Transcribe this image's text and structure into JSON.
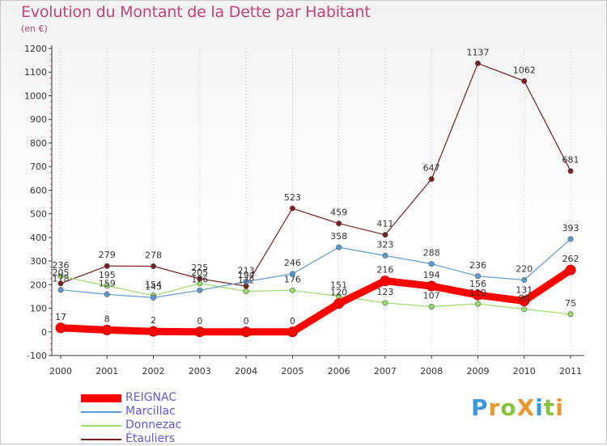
{
  "title": "Evolution du Montant de la Dette par Habitant",
  "subtitle": "(en €)",
  "brand": "ProXiti",
  "chart_data": {
    "type": "line",
    "title": "Evolution du Montant de la Dette par Habitant",
    "subtitle": "(en €)",
    "xlabel": "",
    "ylabel": "",
    "x": [
      "2000",
      "2001",
      "2002",
      "2003",
      "2004",
      "2005",
      "2006",
      "2007",
      "2008",
      "2009",
      "2010",
      "2011"
    ],
    "ylim": [
      -100,
      1200
    ],
    "yticks": [
      -100,
      0,
      100,
      200,
      300,
      400,
      500,
      600,
      700,
      800,
      900,
      1000,
      1100,
      1200
    ],
    "grid": "vertical dotted",
    "legend": "bottom-left",
    "series": [
      {
        "name": "REIGNAC",
        "color": "#ff0000",
        "values": [
          17,
          8,
          2,
          0,
          0,
          0,
          120,
          216,
          194,
          156,
          131,
          262
        ]
      },
      {
        "name": "Marcillac",
        "color": "#5b9bd5",
        "values": [
          178,
          159,
          145,
          176,
          213,
          246,
          358,
          323,
          288,
          236,
          220,
          393
        ]
      },
      {
        "name": "Donnezac",
        "color": "#99dd66",
        "values": [
          236,
          195,
          154,
          205,
          172,
          176,
          151,
          123,
          107,
          119,
          96,
          75
        ]
      },
      {
        "name": "Étauliers",
        "color": "#7a2020",
        "values": [
          205,
          279,
          278,
          225,
          194,
          523,
          459,
          411,
          647,
          1137,
          1062,
          681
        ]
      }
    ]
  }
}
